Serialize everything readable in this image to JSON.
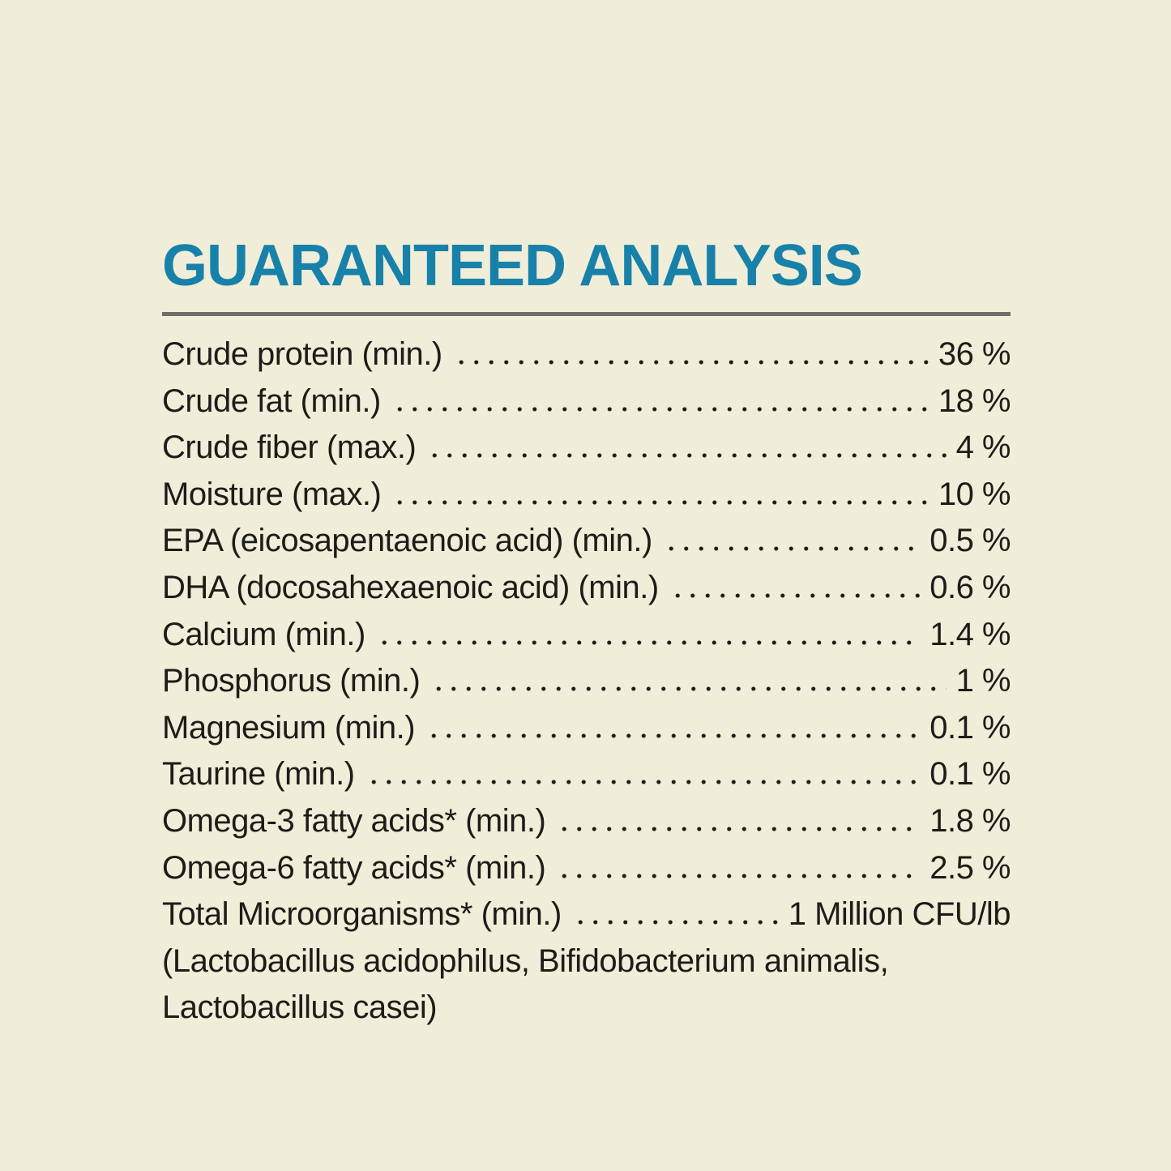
{
  "page": {
    "background_color": "#f0eed9",
    "text_color": "#1d1c18"
  },
  "panel": {
    "title": "GUARANTEED ANALYSIS",
    "title_color": "#1881a9",
    "rule_color": "#6f6f67",
    "rows": [
      {
        "label": "Crude protein (min.)",
        "value": "36 %"
      },
      {
        "label": "Crude fat (min.)",
        "value": "18 %"
      },
      {
        "label": "Crude fiber (max.)",
        "value": "4 %"
      },
      {
        "label": "Moisture (max.)",
        "value": "10 %"
      },
      {
        "label": "EPA (eicosapentaenoic acid) (min.)",
        "value": "0.5 %"
      },
      {
        "label": "DHA (docosahexaenoic acid) (min.)",
        "value": "0.6 %"
      },
      {
        "label": "Calcium (min.)",
        "value": "1.4 %"
      },
      {
        "label": "Phosphorus (min.)",
        "value": "1 %"
      },
      {
        "label": "Magnesium (min.)",
        "value": "0.1 %"
      },
      {
        "label": "Taurine (min.)",
        "value": "0.1 %"
      },
      {
        "label": "Omega-3 fatty acids* (min.)",
        "value": "1.8 %"
      },
      {
        "label": "Omega-6 fatty acids* (min.)",
        "value": "2.5 %"
      },
      {
        "label": "Total Microorganisms* (min.)",
        "value": "1 Million CFU/lb"
      }
    ],
    "note_lines": [
      "(Lactobacillus acidophilus, Bifidobacterium animalis,",
      "Lactobacillus casei)"
    ]
  }
}
